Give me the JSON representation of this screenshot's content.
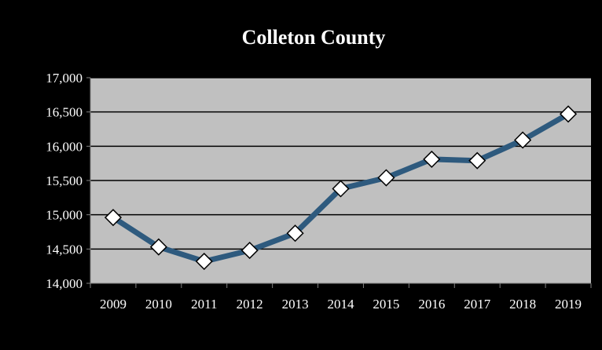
{
  "chart_data": {
    "type": "line",
    "title": "Colleton County",
    "xlabel": "",
    "ylabel": "",
    "categories": [
      "2009",
      "2010",
      "2011",
      "2012",
      "2013",
      "2014",
      "2015",
      "2016",
      "2017",
      "2018",
      "2019"
    ],
    "series": [
      {
        "values": [
          14960,
          14530,
          14320,
          14480,
          14730,
          15380,
          15540,
          15810,
          15790,
          16090,
          16470
        ]
      }
    ],
    "ylim": [
      14000,
      17000
    ],
    "yticks": [
      14000,
      14500,
      15000,
      15500,
      16000,
      16500,
      17000
    ],
    "ytick_labels": [
      "14,000",
      "14,500",
      "15,000",
      "15,500",
      "16,000",
      "16,500",
      "17,000"
    ],
    "grid": true,
    "legend": "none",
    "colors": {
      "background": "#000000",
      "plot_area": "#c0c0c0",
      "line": "#2e5a7e",
      "marker_fill": "#ffffff",
      "marker_stroke": "#000000",
      "gridline": "#000000",
      "text": "#ffffff"
    }
  }
}
